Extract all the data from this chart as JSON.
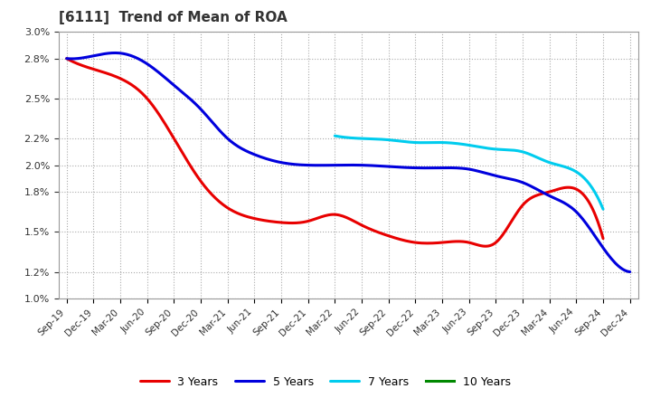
{
  "title": "[6111]  Trend of Mean of ROA",
  "x_labels": [
    "Sep-19",
    "Dec-19",
    "Mar-20",
    "Jun-20",
    "Sep-20",
    "Dec-20",
    "Mar-21",
    "Jun-21",
    "Sep-21",
    "Dec-21",
    "Mar-22",
    "Jun-22",
    "Sep-22",
    "Dec-22",
    "Mar-23",
    "Jun-23",
    "Sep-23",
    "Dec-23",
    "Mar-24",
    "Jun-24",
    "Sep-24",
    "Dec-24"
  ],
  "series_3y": {
    "color": "#e80000",
    "values": [
      2.8,
      2.72,
      2.65,
      2.5,
      2.2,
      1.88,
      1.68,
      1.6,
      1.57,
      1.58,
      1.63,
      1.55,
      1.47,
      1.42,
      1.42,
      1.42,
      1.42,
      1.7,
      1.8,
      1.82,
      1.45,
      null
    ]
  },
  "series_5y": {
    "color": "#0000dd",
    "values": [
      2.8,
      2.82,
      2.84,
      2.76,
      2.6,
      2.42,
      2.2,
      2.08,
      2.02,
      2.0,
      2.0,
      2.0,
      1.99,
      1.98,
      1.98,
      1.97,
      1.92,
      1.87,
      1.77,
      1.65,
      1.38,
      1.2
    ]
  },
  "series_7y": {
    "color": "#00ccee",
    "values": [
      null,
      null,
      null,
      null,
      null,
      null,
      null,
      null,
      null,
      null,
      2.22,
      2.2,
      2.19,
      2.17,
      2.17,
      2.15,
      2.12,
      2.1,
      2.02,
      1.95,
      1.67,
      null
    ]
  },
  "series_10y": {
    "color": "#008800",
    "values": [
      null,
      null,
      null,
      null,
      null,
      null,
      null,
      null,
      null,
      null,
      null,
      null,
      null,
      null,
      null,
      null,
      null,
      null,
      null,
      null,
      null,
      null
    ]
  },
  "yticks": [
    1.0,
    1.2,
    1.5,
    1.8,
    2.0,
    2.2,
    2.5,
    2.8,
    3.0
  ],
  "ylim_low": 1.0,
  "ylim_high": 3.0,
  "background_color": "#ffffff",
  "grid_color": "#999999",
  "title_color": "#333333"
}
